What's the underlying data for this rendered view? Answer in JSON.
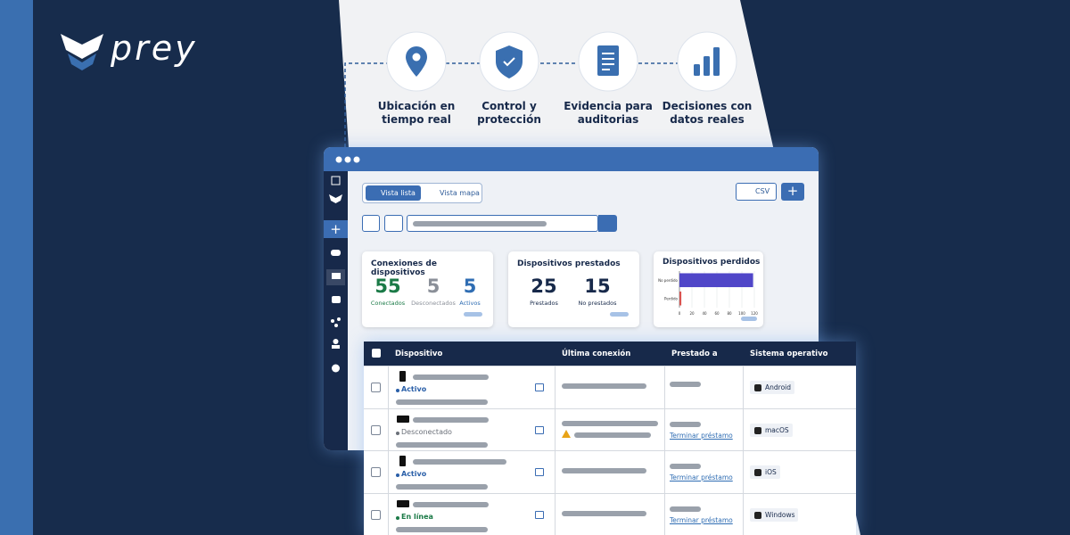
{
  "brand": {
    "name": "prey"
  },
  "features": [
    {
      "label": "Ubicación en tiempo real"
    },
    {
      "label": "Control y protección"
    },
    {
      "label": "Evidencia para auditorias"
    },
    {
      "label": "Decisiones con datos reales"
    }
  ],
  "toolbar": {
    "list_view": "Vista lista",
    "map_view": "Vista mapa",
    "export": "CSV"
  },
  "cards": {
    "connections": {
      "title": "Conexiones de dispositivos",
      "stats": [
        {
          "value": 55,
          "label": "Conectados",
          "color": "#1b7a47"
        },
        {
          "value": 5,
          "label": "Desconectados",
          "color": "#8a8f98"
        },
        {
          "value": 5,
          "label": "Activos",
          "color": "#2f6db3"
        }
      ]
    },
    "loans": {
      "title": "Dispositivos prestados",
      "stats": [
        {
          "value": 25,
          "label": "Prestados",
          "color": "#17294a"
        },
        {
          "value": 15,
          "label": "No prestados",
          "color": "#17294a"
        }
      ]
    },
    "lost": {
      "title": "Dispositivos perdidos",
      "chart": {
        "type": "bar",
        "orientation": "horizontal",
        "categories": [
          "No perdido",
          "Perdido"
        ],
        "values": [
          118,
          3
        ],
        "colors": [
          "#5046c8",
          "#d9534f"
        ],
        "xlim": [
          0,
          120
        ],
        "xticks": [
          0,
          20,
          40,
          60,
          80,
          100,
          120
        ],
        "grid": true
      }
    }
  },
  "table": {
    "headers": [
      "Dispositivo",
      "Última conexión",
      "Prestado a",
      "Sistema operativo"
    ],
    "rows": [
      {
        "status": "Activo",
        "status_color": "#2a5fa8",
        "os": "Android"
      },
      {
        "status": "Desconectado",
        "status_color": "#6b7079",
        "loan_action": "Terminar préstamo",
        "os": "macOS"
      },
      {
        "status": "Activo",
        "status_color": "#2a5fa8",
        "loan_action": "Terminar préstamo",
        "os": "iOS"
      },
      {
        "status": "En línea",
        "status_color": "#1b7a47",
        "loan_action": "Terminar préstamo",
        "os": "Windows"
      }
    ]
  }
}
